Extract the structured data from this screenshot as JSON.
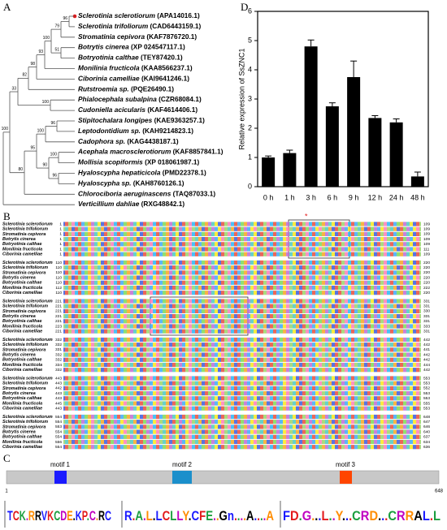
{
  "panels": {
    "a": "A",
    "b": "B",
    "c": "C",
    "d": "D"
  },
  "tree": {
    "taxa": [
      {
        "name": "Sclerotinia sclerotiorum",
        "id": "(APA14016.1)"
      },
      {
        "name": "Sclerotinia trifoliorum",
        "id": "(CAD6443159.1)"
      },
      {
        "name": "Stromatinia cepivora",
        "id": "(KAF7876720.1)"
      },
      {
        "name": "Botrytis cinerea",
        "id": "(XP 024547117.1)"
      },
      {
        "name": "Botryotinia calthae",
        "id": "(TEY87420.1)"
      },
      {
        "name": "Monilinia fructicola",
        "id": "(KAA8566237.1)"
      },
      {
        "name": "Ciborinia camelliae",
        "id": "(KAI9641246.1)"
      },
      {
        "name": "Rutstroemia sp.",
        "id": "(PQE26490.1)"
      },
      {
        "name": "Phialocephala subalpina",
        "id": "(CZR68084.1)"
      },
      {
        "name": "Cudoniella acicularis",
        "id": "(KAF4614406.1)"
      },
      {
        "name": "Stipitochalara longipes",
        "id": "(KAE9363257.1)"
      },
      {
        "name": "Leptodontidium sp.",
        "id": "(KAH9214823.1)"
      },
      {
        "name": "Cadophora sp.",
        "id": "(KAG4438187.1)"
      },
      {
        "name": "Acephala macrosclerotiorum",
        "id": "(KAF8857841.1)"
      },
      {
        "name": "Mollisia scopiformis",
        "id": "(XP 018061987.1)"
      },
      {
        "name": "Hyaloscypha hepaticicola",
        "id": "(PMD22378.1)"
      },
      {
        "name": "Hyaloscypha sp.",
        "id": "(KAH8760126.1)"
      },
      {
        "name": "Chlorociboria aeruginascens",
        "id": "(TAQ87033.1)"
      },
      {
        "name": "Verticillium dahliae",
        "id": "(RXG48842.1)"
      }
    ],
    "bootstrap": [
      96,
      79,
      51,
      100,
      93,
      98,
      82,
      100,
      33,
      96,
      100,
      100,
      96,
      90,
      95,
      80,
      100
    ]
  },
  "alignment": {
    "names": [
      "Sclerotinia sclerotiorum",
      "Sclerotinia trifoliorum",
      "Stromatinia cepivora",
      "Botrytis cinerea",
      "Botryotinia calthae",
      "Monilinia fructicola",
      "Ciborinia camelliae"
    ],
    "blocks": [
      {
        "starts": [
          1,
          1,
          1,
          1,
          1,
          1,
          1
        ],
        "ends": [
          109,
          109,
          109,
          109,
          109,
          111,
          109
        ]
      },
      {
        "starts": [
          110,
          110,
          110,
          110,
          110,
          112,
          110
        ],
        "ends": [
          220,
          220,
          220,
          220,
          220,
          222,
          220
        ]
      },
      {
        "starts": [
          221,
          221,
          221,
          221,
          221,
          223,
          221
        ],
        "ends": [
          331,
          331,
          330,
          331,
          331,
          333,
          331
        ]
      },
      {
        "starts": [
          332,
          332,
          331,
          332,
          332,
          334,
          332
        ],
        "ends": [
          442,
          442,
          441,
          442,
          442,
          444,
          442
        ]
      },
      {
        "starts": [
          443,
          443,
          442,
          443,
          443,
          445,
          443
        ],
        "ends": [
          553,
          553,
          552,
          553,
          553,
          555,
          553
        ]
      },
      {
        "starts": [
          554,
          554,
          553,
          554,
          554,
          556,
          554
        ],
        "ends": [
          648,
          647,
          646,
          640,
          637,
          634,
          636
        ]
      }
    ]
  },
  "motifs": {
    "labels": [
      "motif 1",
      "motif 2",
      "motif 3"
    ],
    "start": 1,
    "end": 648,
    "logos": [
      "TCK.RRVKCDE.KP.C.RC",
      "R.A.L.LCLLY.CFE..Gn....A....A",
      "FD.G...L..Y...CRD...CRRAL.L"
    ]
  },
  "chart_data": {
    "type": "bar",
    "y_label": "Relative expression of SsZNC1",
    "categories": [
      "0 h",
      "1 h",
      "3 h",
      "6 h",
      "9 h",
      "12 h",
      "24 h",
      "48 h"
    ],
    "values": [
      1.0,
      1.15,
      4.8,
      2.75,
      3.75,
      2.35,
      2.2,
      0.35
    ],
    "errors": [
      0.05,
      0.1,
      0.22,
      0.12,
      0.55,
      0.08,
      0.12,
      0.15
    ],
    "color": "#000000",
    "ylim": [
      0,
      6
    ],
    "yticks": [
      0,
      1,
      2,
      3,
      4,
      5,
      6
    ]
  }
}
